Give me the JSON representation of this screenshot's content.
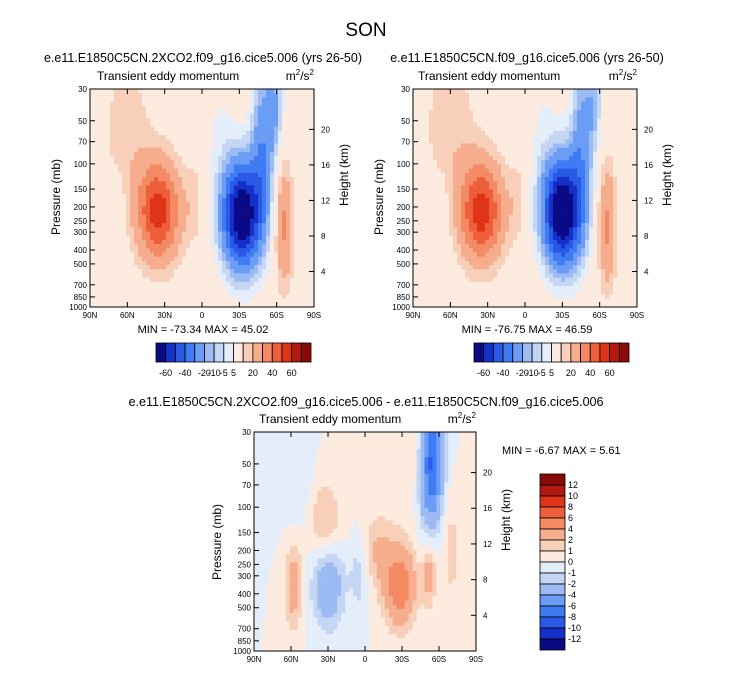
{
  "page_title": "SON",
  "palette_main": [
    "#0a0a86",
    "#1530c8",
    "#2a59e6",
    "#3f7cf4",
    "#6b9df6",
    "#9bbbf2",
    "#c4d6f4",
    "#e4eefb",
    "#fdebe0",
    "#f8cfb8",
    "#f5ad8d",
    "#f38a63",
    "#ee5e3b",
    "#de3418",
    "#b3190e",
    "#8a0a0a"
  ],
  "palette_diff": [
    "#0a0a86",
    "#1530c8",
    "#2a59e6",
    "#3f7cf4",
    "#6b9df6",
    "#9bbbf2",
    "#c4d6f4",
    "#e4eefb",
    "#fdebe0",
    "#f8cfb8",
    "#f5ad8d",
    "#f38a63",
    "#ee5e3b",
    "#de3418",
    "#b3190e",
    "#8a0a0a"
  ],
  "colorbar_main": {
    "labels": [
      "-60",
      "-40",
      "-20",
      "-10",
      "-5",
      "5",
      "20",
      "40",
      "60"
    ]
  },
  "colorbar_diff": {
    "labels": [
      "12",
      "10",
      "8",
      "6",
      "4",
      "2",
      "1",
      "0",
      "-1",
      "-2",
      "-4",
      "-6",
      "-8",
      "-10",
      "-12"
    ]
  },
  "chart_data": [
    {
      "type": "heatmap",
      "title": "e.e11.E1850C5CN.2XCO2.f09_g16.cice5.006 (yrs 26-50)",
      "left_label": "Transient eddy momentum",
      "units_base": "m",
      "units_sup": "2",
      "units_tail": "/s",
      "units_sup2": "2",
      "ylabel": "Pressure (mb)",
      "ylabel_right": "Height (km)",
      "pressure_ticks": [
        "30",
        "50",
        "70",
        "100",
        "150",
        "200",
        "250",
        "300",
        "400",
        "500",
        "700",
        "850",
        "1000"
      ],
      "height_ticks": [
        "4",
        "8",
        "12",
        "16",
        "20"
      ],
      "lat_ticks": [
        "90N",
        "60N",
        "30N",
        "0",
        "30S",
        "60S",
        "90S"
      ],
      "min": "-73.34",
      "max": "45.02",
      "stats_text": "MIN = -73.34   MAX = 45.02",
      "xlim": [
        90,
        -90
      ],
      "ylim_mb": [
        1000,
        30
      ],
      "features": [
        {
          "lat": 35,
          "p": 215,
          "amp": 45,
          "lat_w": 12,
          "p_w": 0.55
        },
        {
          "lat": -32,
          "p": 230,
          "amp": -73,
          "lat_w": 11,
          "p_w": 0.6
        },
        {
          "lat": -48,
          "p": 80,
          "amp": -25,
          "lat_w": 6,
          "p_w": 0.9
        },
        {
          "lat": -58,
          "p": 40,
          "amp": -20,
          "lat_w": 5,
          "p_w": 0.6
        },
        {
          "lat": -66,
          "p": 270,
          "amp": 22,
          "lat_w": 5,
          "p_w": 0.7
        },
        {
          "lat": 60,
          "p": 60,
          "amp": 8,
          "lat_w": 15,
          "p_w": 0.9
        },
        {
          "lat": 6,
          "p": 180,
          "amp": 7,
          "lat_w": 5,
          "p_w": 0.5
        },
        {
          "lat": 68,
          "p": 230,
          "amp": -8,
          "lat_w": 4,
          "p_w": 0.4
        },
        {
          "lat": -15,
          "p": 60,
          "amp": -5,
          "lat_w": 10,
          "p_w": 0.9
        }
      ]
    },
    {
      "type": "heatmap",
      "title": "e.e11.E1850C5CN.f09_g16.cice5.006 (yrs 26-50)",
      "left_label": "Transient eddy momentum",
      "units_base": "m",
      "units_sup": "2",
      "units_tail": "/s",
      "units_sup2": "2",
      "ylabel": "Pressure (mb)",
      "ylabel_right": "Height (km)",
      "pressure_ticks": [
        "30",
        "50",
        "70",
        "100",
        "150",
        "200",
        "250",
        "300",
        "400",
        "500",
        "700",
        "850",
        "1000"
      ],
      "height_ticks": [
        "4",
        "8",
        "12",
        "16",
        "20"
      ],
      "lat_ticks": [
        "90N",
        "60N",
        "30N",
        "0",
        "30S",
        "60S",
        "90S"
      ],
      "min": "-76.75",
      "max": "46.59",
      "stats_text": "MIN = -76.75   MAX = 46.59",
      "xlim": [
        90,
        -90
      ],
      "ylim_mb": [
        1000,
        30
      ],
      "features": [
        {
          "lat": 35,
          "p": 215,
          "amp": 46,
          "lat_w": 12,
          "p_w": 0.55
        },
        {
          "lat": -30,
          "p": 220,
          "amp": -76,
          "lat_w": 11,
          "p_w": 0.6
        },
        {
          "lat": -45,
          "p": 70,
          "amp": -22,
          "lat_w": 6,
          "p_w": 0.9
        },
        {
          "lat": -55,
          "p": 38,
          "amp": -15,
          "lat_w": 5,
          "p_w": 0.6
        },
        {
          "lat": -66,
          "p": 270,
          "amp": 22,
          "lat_w": 5,
          "p_w": 0.7
        },
        {
          "lat": 60,
          "p": 55,
          "amp": 9,
          "lat_w": 15,
          "p_w": 0.9
        },
        {
          "lat": 6,
          "p": 180,
          "amp": 7,
          "lat_w": 5,
          "p_w": 0.5
        },
        {
          "lat": 68,
          "p": 230,
          "amp": -8,
          "lat_w": 4,
          "p_w": 0.4
        },
        {
          "lat": -15,
          "p": 60,
          "amp": -5,
          "lat_w": 10,
          "p_w": 0.9
        }
      ]
    },
    {
      "type": "heatmap",
      "title": "e.e11.E1850C5CN.2XCO2.f09_g16.cice5.006 - e.e11.E1850C5CN.f09_g16.cice5.006",
      "left_label": "Transient eddy momentum",
      "units_base": "m",
      "units_sup": "2",
      "units_tail": "/s",
      "units_sup2": "2",
      "ylabel": "Pressure (mb)",
      "ylabel_right": "Height (km)",
      "pressure_ticks": [
        "30",
        "50",
        "70",
        "100",
        "150",
        "200",
        "250",
        "300",
        "400",
        "500",
        "700",
        "850",
        "1000"
      ],
      "height_ticks": [
        "4",
        "8",
        "12",
        "16",
        "20"
      ],
      "lat_ticks": [
        "90N",
        "60N",
        "30N",
        "0",
        "30S",
        "60S",
        "90S"
      ],
      "min": "-6.67",
      "max": "5.61",
      "stats_text": "MIN = -6.67   MAX =  5.61",
      "xlim": [
        90,
        -90
      ],
      "ylim_mb": [
        1000,
        30
      ],
      "features": [
        {
          "lat": -55,
          "p": 45,
          "amp": -6.7,
          "lat_w": 6,
          "p_w": 0.6
        },
        {
          "lat": -52,
          "p": 80,
          "amp": -2.5,
          "lat_w": 6,
          "p_w": 0.7
        },
        {
          "lat": 30,
          "p": 330,
          "amp": -4.0,
          "lat_w": 9,
          "p_w": 0.5
        },
        {
          "lat": -28,
          "p": 350,
          "amp": 5.6,
          "lat_w": 9,
          "p_w": 0.45
        },
        {
          "lat": -52,
          "p": 280,
          "amp": 3.0,
          "lat_w": 4,
          "p_w": 0.4
        },
        {
          "lat": 58,
          "p": 350,
          "amp": 3.0,
          "lat_w": 5,
          "p_w": 0.5
        },
        {
          "lat": 32,
          "p": 140,
          "amp": 2.5,
          "lat_w": 9,
          "p_w": 0.5
        },
        {
          "lat": -10,
          "p": 200,
          "amp": 2.0,
          "lat_w": 8,
          "p_w": 0.4
        },
        {
          "lat": 5,
          "p": 300,
          "amp": -1.5,
          "lat_w": 5,
          "p_w": 0.4
        },
        {
          "lat": -30,
          "p": 45,
          "amp": 1.0,
          "lat_w": 12,
          "p_w": 0.7
        },
        {
          "lat": 55,
          "p": 60,
          "amp": -1.0,
          "lat_w": 8,
          "p_w": 0.7
        },
        {
          "lat": -70,
          "p": 200,
          "amp": 1.5,
          "lat_w": 5,
          "p_w": 0.6
        }
      ]
    }
  ]
}
